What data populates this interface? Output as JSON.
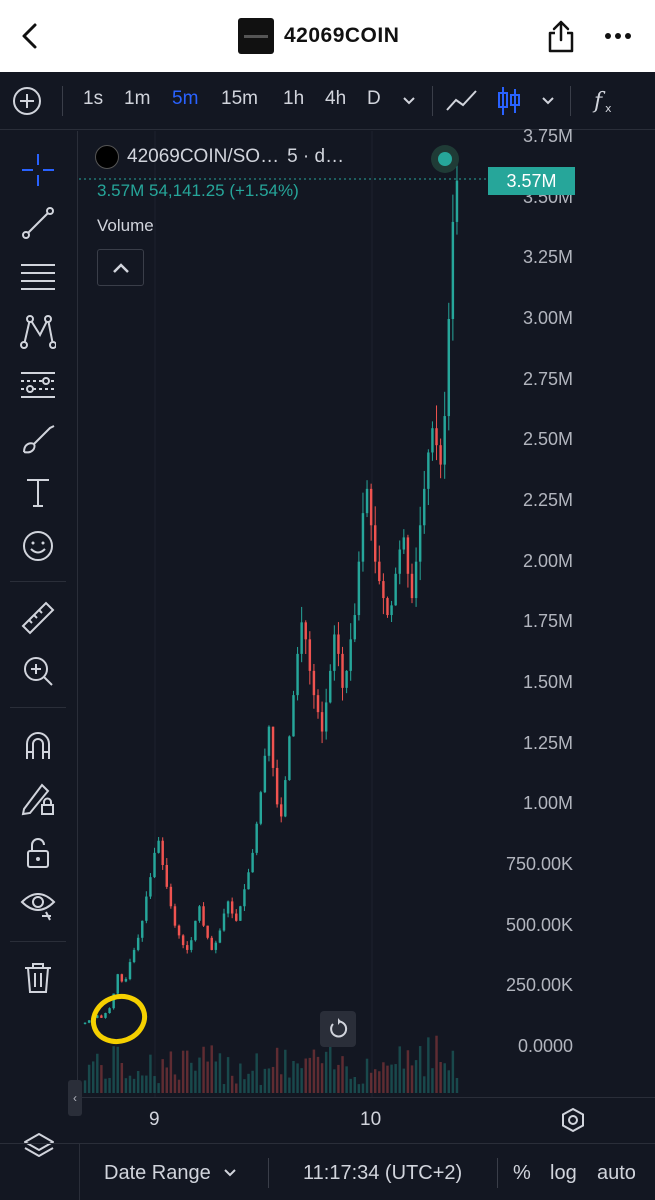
{
  "nav": {
    "title": "42069COIN",
    "back_icon": "chevron-left-icon",
    "share_icon": "share-icon",
    "more_icon": "more-dots-icon"
  },
  "toolbar": {
    "intervals": [
      "1s",
      "1m",
      "5m",
      "15m",
      "1h",
      "4h",
      "D"
    ],
    "active_interval": "5m",
    "chart_type_icon": "candles-icon",
    "indicators_icon": "fx-icon"
  },
  "chart": {
    "symbol": "42069COIN/SO…",
    "symbol_suffix": "5 · d…",
    "last_price": "3.57M",
    "change_text": "54,141.25 (+1.54%)",
    "volume_label": "Volume",
    "price_tag": "3.57M",
    "y_labels": [
      "3.75M",
      "3.50M",
      "3.25M",
      "3.00M",
      "2.75M",
      "2.50M",
      "2.25M",
      "2.00M",
      "1.75M",
      "1.50M",
      "1.25M",
      "1.00M",
      "750.00K",
      "500.00K",
      "250.00K",
      "0.0000"
    ],
    "x_ticks": [
      "9",
      "10"
    ],
    "colors": {
      "up": "#26a69a",
      "down": "#ef5350",
      "highlight": "#f5d000",
      "background": "#131722"
    }
  },
  "chart_data": {
    "type": "candlestick",
    "title": "",
    "xlabel": "",
    "ylabel": "",
    "ylim": [
      0,
      3750000
    ],
    "interval": "5m",
    "close_series": [
      0.1,
      0.11,
      0.12,
      0.13,
      0.12,
      0.14,
      0.16,
      0.22,
      0.3,
      0.27,
      0.28,
      0.35,
      0.4,
      0.45,
      0.52,
      0.62,
      0.7,
      0.8,
      0.85,
      0.75,
      0.66,
      0.58,
      0.5,
      0.46,
      0.42,
      0.4,
      0.44,
      0.52,
      0.58,
      0.5,
      0.45,
      0.4,
      0.43,
      0.48,
      0.55,
      0.6,
      0.55,
      0.52,
      0.58,
      0.65,
      0.72,
      0.8,
      0.92,
      1.05,
      1.2,
      1.32,
      1.15,
      1.0,
      0.95,
      1.1,
      1.28,
      1.45,
      1.62,
      1.75,
      1.68,
      1.55,
      1.45,
      1.38,
      1.3,
      1.42,
      1.55,
      1.7,
      1.62,
      1.48,
      1.55,
      1.68,
      1.78,
      2.0,
      2.2,
      2.3,
      2.15,
      2.0,
      1.92,
      1.85,
      1.78,
      1.82,
      1.95,
      2.05,
      2.1,
      1.95,
      1.85,
      2.0,
      2.15,
      2.3,
      2.45,
      2.55,
      2.48,
      2.4,
      2.6,
      3.0,
      3.4,
      3.57
    ],
    "annotation": "yellow hand-drawn circle around early candles"
  },
  "leftbar": {
    "tools": [
      "crosshair-icon",
      "trend-line-icon",
      "fib-retracement-icon",
      "pattern-icon",
      "projection-icon",
      "brush-icon",
      "text-icon",
      "emoji-icon",
      "ruler-icon",
      "zoom-in-icon",
      "magnet-icon",
      "lock-drawing-icon",
      "unlock-icon",
      "eye-icon",
      "trash-icon"
    ]
  },
  "bottom": {
    "date_range": "Date Range",
    "time": "11:17:34 (UTC+2)",
    "percent": "%",
    "log": "log",
    "auto": "auto"
  }
}
